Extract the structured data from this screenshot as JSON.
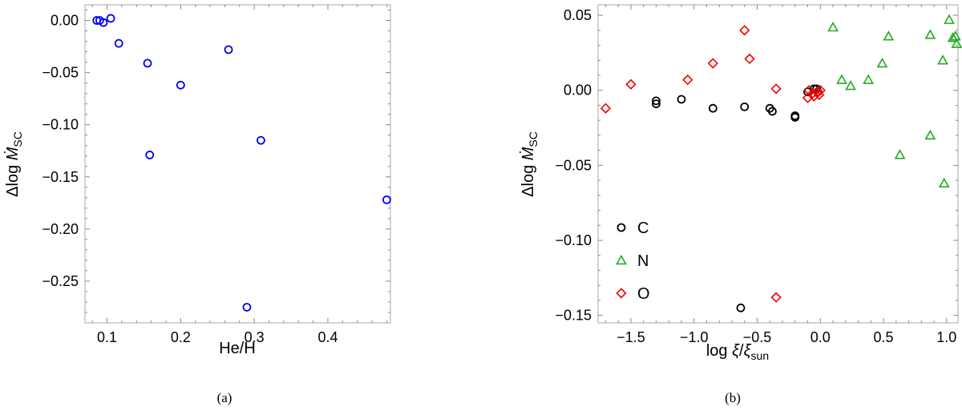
{
  "charts": [
    {
      "type": "scatter",
      "caption": "(a)",
      "xlabel": "He/H",
      "ylabel": {
        "prefix": "Δlog ",
        "var": "Ṁ",
        "sub": "SC"
      },
      "xlim": [
        0.07,
        0.485
      ],
      "ylim": [
        -0.29,
        0.015
      ],
      "xticks": [
        0.1,
        0.2,
        0.3,
        0.4
      ],
      "xtick_labels": [
        "0.1",
        "0.2",
        "0.3",
        "0.4"
      ],
      "yticks": [
        0.0,
        -0.05,
        -0.1,
        -0.15,
        -0.2,
        -0.25
      ],
      "ytick_labels": [
        "0.00",
        "−0.05",
        "−0.10",
        "−0.15",
        "−0.20",
        "−0.25"
      ],
      "colors": {
        "frame": "#aaaaaa",
        "tick": "#888888"
      },
      "series": [
        {
          "marker": "circle",
          "color": "#0000ee",
          "points": [
            [
              0.086,
              0.0
            ],
            [
              0.09,
              0.0
            ],
            [
              0.095,
              -0.002
            ],
            [
              0.105,
              0.002
            ],
            [
              0.116,
              -0.022
            ],
            [
              0.155,
              -0.041
            ],
            [
              0.158,
              -0.129
            ],
            [
              0.2,
              -0.062
            ],
            [
              0.265,
              -0.028
            ],
            [
              0.29,
              -0.275
            ],
            [
              0.309,
              -0.115
            ],
            [
              0.48,
              -0.172
            ]
          ]
        }
      ]
    },
    {
      "type": "scatter",
      "caption": "(b)",
      "xlabel": {
        "prefix": "log ",
        "var1": "ξ",
        "slash": "/",
        "var2": "ξ",
        "sub": "sun"
      },
      "ylabel": {
        "prefix": "Δlog ",
        "var": "Ṁ",
        "sub": "SC"
      },
      "xlim": [
        -1.76,
        1.09
      ],
      "ylim": [
        -0.155,
        0.057
      ],
      "xticks": [
        -1.5,
        -1.0,
        -0.5,
        0.0,
        0.5,
        1.0
      ],
      "xtick_labels": [
        "−1.5",
        "−1.0",
        "−0.5",
        "0.0",
        "0.5",
        "1.0"
      ],
      "yticks": [
        0.05,
        0.0,
        -0.05,
        -0.1,
        -0.15
      ],
      "ytick_labels": [
        "0.05",
        "0.00",
        "−0.05",
        "−0.10",
        "−0.15"
      ],
      "colors": {
        "frame": "#aaaaaa",
        "tick": "#888888"
      },
      "legend": {
        "placement": "bottom-left",
        "entries": [
          "C",
          "N",
          "O"
        ]
      },
      "series": [
        {
          "name": "C",
          "marker": "circle",
          "color": "#000000",
          "points": [
            [
              -1.3,
              -0.007
            ],
            [
              -1.3,
              -0.009
            ],
            [
              -1.1,
              -0.006
            ],
            [
              -0.85,
              -0.012
            ],
            [
              -0.6,
              -0.011
            ],
            [
              -0.4,
              -0.012
            ],
            [
              -0.38,
              -0.014
            ],
            [
              -0.2,
              -0.017
            ],
            [
              -0.2,
              -0.018
            ],
            [
              -0.1,
              -0.001
            ],
            [
              -0.05,
              0.001
            ],
            [
              -0.03,
              0.001
            ],
            [
              -0.02,
              -0.001
            ],
            [
              -0.63,
              -0.145
            ]
          ]
        },
        {
          "name": "N",
          "marker": "triangle",
          "color": "#22aa22",
          "points": [
            [
              0.1,
              0.042
            ],
            [
              0.17,
              0.007
            ],
            [
              0.24,
              0.003
            ],
            [
              0.38,
              0.007
            ],
            [
              0.49,
              0.018
            ],
            [
              0.54,
              0.036
            ],
            [
              0.63,
              -0.043
            ],
            [
              0.87,
              0.037
            ],
            [
              0.87,
              -0.03
            ],
            [
              0.97,
              0.02
            ],
            [
              0.98,
              -0.062
            ],
            [
              1.02,
              0.047
            ],
            [
              1.05,
              0.035
            ],
            [
              1.07,
              0.036
            ],
            [
              1.08,
              0.031
            ]
          ]
        },
        {
          "name": "O",
          "marker": "diamond",
          "color": "#ee0000",
          "points": [
            [
              -1.7,
              -0.012
            ],
            [
              -1.5,
              0.004
            ],
            [
              -1.05,
              0.007
            ],
            [
              -0.85,
              0.018
            ],
            [
              -0.6,
              0.04
            ],
            [
              -0.56,
              0.021
            ],
            [
              -0.35,
              0.001
            ],
            [
              -0.1,
              -0.005
            ],
            [
              -0.09,
              0.0
            ],
            [
              -0.06,
              -0.002
            ],
            [
              -0.05,
              -0.004
            ],
            [
              -0.02,
              -0.001
            ],
            [
              -0.01,
              -0.003
            ],
            [
              0.0,
              0.0
            ],
            [
              -0.35,
              -0.138
            ]
          ]
        }
      ]
    }
  ]
}
